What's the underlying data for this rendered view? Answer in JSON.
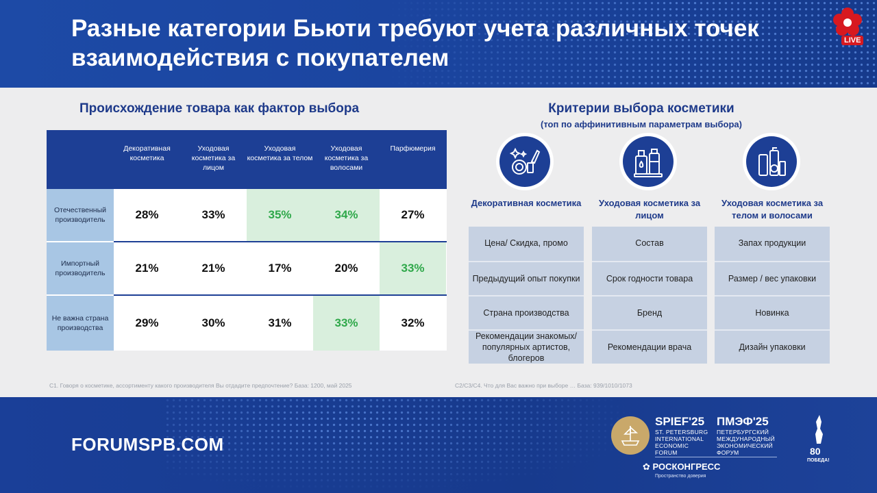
{
  "header": {
    "title": "Разные категории Бьюти требуют учета различных точек взаимодействия с покупателем",
    "live_label": "LIVE"
  },
  "left": {
    "title": "Происхождение товара как фактор выбора",
    "columns": [
      "Декоративная косметика",
      "Уходовая косметика за лицом",
      "Уходовая косметика за телом",
      "Уходовая косметика за волосами",
      "Парфюмерия"
    ],
    "rows": [
      {
        "label": "Отечественный производитель",
        "values": [
          "28%",
          "33%",
          "35%",
          "34%",
          "27%"
        ],
        "highlight": [
          false,
          false,
          true,
          true,
          false
        ]
      },
      {
        "label": "Импортный производитель",
        "values": [
          "21%",
          "21%",
          "17%",
          "20%",
          "33%"
        ],
        "highlight": [
          false,
          false,
          false,
          false,
          true
        ]
      },
      {
        "label": "Не важна страна производства",
        "values": [
          "29%",
          "30%",
          "31%",
          "33%",
          "32%"
        ],
        "highlight": [
          false,
          false,
          false,
          true,
          false
        ]
      }
    ],
    "footnote": "С1. Говоря о косметике, ассортименту какого производителя Вы отдадите предпочтение? База: 1200, май 2025"
  },
  "right": {
    "title": "Критерии выбора косметики",
    "subtitle": "(топ по аффинитивным параметрам выбора)",
    "categories": [
      {
        "heading": "Декоративная косметика",
        "icon": "makeup-icon",
        "items": [
          "Цена/ Скидка, промо",
          "Предыдущий опыт покупки",
          "Страна производства",
          "Рекомендации знакомых/ популярных артистов, блогеров"
        ]
      },
      {
        "heading": "Уходовая косметика за лицом",
        "icon": "skincare-bottles-icon",
        "items": [
          "Состав",
          "Срок годности товара",
          "Бренд",
          "Рекомендации врача"
        ]
      },
      {
        "heading": "Уходовая косметика за телом и волосами",
        "icon": "bodycare-products-icon",
        "items": [
          "Запах продукции",
          "Размер / вес упаковки",
          "Новинка",
          "Дизайн упаковки"
        ]
      }
    ],
    "footnote": "С2/С3/С4. Что для Вас важно при выборе … База: 939/1010/1073"
  },
  "footer": {
    "url": "FORUMSPB.COM",
    "spief_en_big": "SPIEF'25",
    "spief_en_small": [
      "ST. PETERSBURG",
      "INTERNATIONAL",
      "ECONOMIC",
      "FORUM"
    ],
    "spief_ru_big": "ПМЭФ'25",
    "spief_ru_small": [
      "ПЕТЕРБУРГСКИЙ",
      "МЕЖДУНАРОДНЫЙ",
      "ЭКОНОМИЧЕСКИЙ",
      "ФОРУМ"
    ],
    "roscongress": "РОСКОНГРЕСС",
    "roscongress_sub": "Пространство доверия"
  },
  "colors": {
    "brand_blue": "#1d3f95",
    "highlight_green": "#2fa84a",
    "highlight_bg": "#d9efdd",
    "row_label_bg": "#a8c6e4",
    "criteria_bg": "#c6d1e2"
  }
}
